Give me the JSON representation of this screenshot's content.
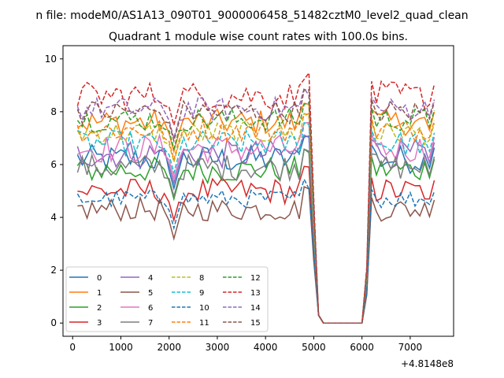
{
  "chart_data": {
    "type": "line",
    "suptitle": "n file: modeM0/AS1A13_090T01_9000006458_51482cztM0_level2_quad_clean",
    "title": "Quadrant 1 module wise count rates with 100.0s bins.",
    "xlabel": "",
    "ylabel": "",
    "x_offset_label": "+4.8148e8",
    "xlim": [
      -200,
      7900
    ],
    "ylim": [
      -0.5,
      10.5
    ],
    "x_ticks": [
      0,
      1000,
      2000,
      3000,
      4000,
      5000,
      6000,
      7000
    ],
    "x_tick_labels": [
      "0",
      "1000",
      "2000",
      "3000",
      "4000",
      "5000",
      "6000",
      "7000"
    ],
    "y_ticks": [
      0,
      2,
      4,
      6,
      8,
      10
    ],
    "y_tick_labels": [
      "0",
      "2",
      "4",
      "6",
      "8",
      "10"
    ],
    "legend_position": "lower-left",
    "gap": {
      "start": 5100,
      "end": 6000,
      "value": 0
    },
    "break": {
      "dip_x": 2100
    },
    "series": [
      {
        "name": "0",
        "color": "#1f77b4",
        "style": "solid",
        "level": 6.2,
        "amp": 0.55,
        "dip": 0.85
      },
      {
        "name": "1",
        "color": "#ff7f0e",
        "style": "solid",
        "level": 7.6,
        "amp": 0.5,
        "dip": 0.85
      },
      {
        "name": "2",
        "color": "#2ca02c",
        "style": "solid",
        "level": 5.8,
        "amp": 0.5,
        "dip": 0.85
      },
      {
        "name": "3",
        "color": "#d62728",
        "style": "solid",
        "level": 5.0,
        "amp": 0.5,
        "dip": 0.85
      },
      {
        "name": "4",
        "color": "#9467bd",
        "style": "solid",
        "level": 6.4,
        "amp": 0.55,
        "dip": 0.85
      },
      {
        "name": "5",
        "color": "#8c564b",
        "style": "solid",
        "level": 4.3,
        "amp": 0.45,
        "dip": 0.85
      },
      {
        "name": "6",
        "color": "#e377c2",
        "style": "solid",
        "level": 6.6,
        "amp": 0.55,
        "dip": 0.85
      },
      {
        "name": "7",
        "color": "#7f7f7f",
        "style": "solid",
        "level": 5.9,
        "amp": 0.5,
        "dip": 0.85
      },
      {
        "name": "8",
        "color": "#bcbd22",
        "style": "dashed",
        "level": 7.2,
        "amp": 0.45,
        "dip": 0.85
      },
      {
        "name": "9",
        "color": "#17becf",
        "style": "dashed",
        "level": 6.8,
        "amp": 0.5,
        "dip": 0.85
      },
      {
        "name": "10",
        "color": "#1f77b4",
        "style": "dashed",
        "level": 4.7,
        "amp": 0.35,
        "dip": 0.85
      },
      {
        "name": "11",
        "color": "#ff7f0e",
        "style": "dashed",
        "level": 7.3,
        "amp": 0.45,
        "dip": 0.85
      },
      {
        "name": "12",
        "color": "#2ca02c",
        "style": "dashed",
        "level": 7.7,
        "amp": 0.45,
        "dip": 0.85
      },
      {
        "name": "13",
        "color": "#d62728",
        "style": "dashed",
        "level": 8.6,
        "amp": 0.55,
        "dip": 0.85
      },
      {
        "name": "14",
        "color": "#9467bd",
        "style": "dashed",
        "level": 8.1,
        "amp": 0.45,
        "dip": 0.85
      },
      {
        "name": "15",
        "color": "#8c564b",
        "style": "dashed",
        "level": 8.0,
        "amp": 0.45,
        "dip": 0.85
      }
    ]
  }
}
